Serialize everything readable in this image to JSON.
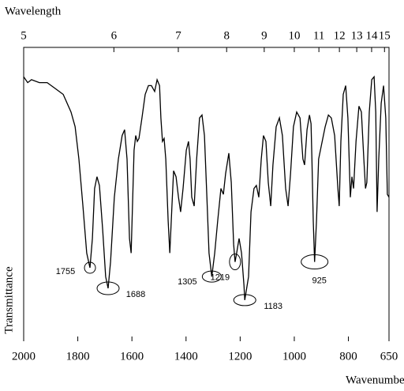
{
  "chart_data": {
    "type": "line",
    "x_label": "Wavenumber",
    "y_label": "Transmittance",
    "x2_label": "Wavelength",
    "xlim": [
      2000,
      650
    ],
    "xticks": [
      2000,
      1800,
      1600,
      1400,
      1200,
      1000,
      800,
      650
    ],
    "x2ticks": [
      5,
      6,
      7,
      8,
      9,
      10,
      11,
      12,
      13,
      14,
      15
    ],
    "ylim": [
      0,
      100
    ],
    "series": [
      {
        "color": "#000000",
        "x": [
          2000,
          1985,
          1971,
          1942,
          1913,
          1883,
          1854,
          1825,
          1810,
          1796,
          1781,
          1767,
          1755,
          1746,
          1738,
          1729,
          1720,
          1708,
          1697,
          1688,
          1679,
          1665,
          1650,
          1636,
          1627,
          1618,
          1609,
          1603,
          1598,
          1592,
          1586,
          1580,
          1574,
          1563,
          1551,
          1539,
          1528,
          1516,
          1507,
          1498,
          1493,
          1487,
          1481,
          1475,
          1466,
          1460,
          1452,
          1446,
          1437,
          1428,
          1420,
          1411,
          1399,
          1391,
          1385,
          1379,
          1370,
          1361,
          1350,
          1341,
          1332,
          1323,
          1315,
          1305,
          1294,
          1283,
          1271,
          1262,
          1254,
          1242,
          1233,
          1224,
          1219,
          1213,
          1204,
          1195,
          1186,
          1183,
          1169,
          1160,
          1149,
          1140,
          1131,
          1122,
          1114,
          1105,
          1096,
          1087,
          1079,
          1067,
          1055,
          1044,
          1032,
          1023,
          1014,
          1003,
          991,
          979,
          968,
          962,
          953,
          944,
          938,
          935,
          930,
          925,
          918,
          910,
          886,
          874,
          863,
          851,
          839,
          834,
          828,
          819,
          810,
          802,
          793,
          787,
          781,
          772,
          761,
          752,
          743,
          737,
          732,
          723,
          714,
          705,
          699,
          694,
          688,
          679,
          670,
          662,
          656,
          650
        ],
        "values": [
          90,
          88,
          89,
          88,
          88,
          86,
          84,
          78,
          73,
          62,
          46,
          30,
          25,
          35,
          52,
          56,
          53,
          38,
          22,
          18,
          27,
          49,
          62,
          70,
          72,
          62,
          35,
          30,
          46,
          65,
          70,
          68,
          69,
          76,
          84,
          87,
          87,
          85,
          89,
          87,
          76,
          68,
          69,
          62,
          41,
          30,
          46,
          58,
          56,
          49,
          44,
          52,
          65,
          68,
          62,
          49,
          46,
          62,
          76,
          77,
          70,
          49,
          30,
          22,
          30,
          41,
          52,
          50,
          57,
          64,
          54,
          33,
          27,
          30,
          35,
          30,
          19,
          14,
          22,
          44,
          52,
          53,
          49,
          62,
          70,
          68,
          54,
          46,
          60,
          73,
          76,
          70,
          52,
          46,
          57,
          73,
          78,
          76,
          62,
          60,
          72,
          77,
          74,
          62,
          41,
          27,
          41,
          62,
          73,
          77,
          76,
          70,
          52,
          46,
          68,
          84,
          87,
          76,
          49,
          56,
          52,
          68,
          80,
          78,
          62,
          52,
          54,
          78,
          89,
          90,
          78,
          44,
          62,
          81,
          87,
          76,
          50,
          49
        ]
      }
    ],
    "annotations": [
      {
        "x": 1755,
        "y": 25
      },
      {
        "x": 1688,
        "y": 18
      },
      {
        "x": 1305,
        "y": 22
      },
      {
        "x": 1219,
        "y": 27
      },
      {
        "x": 1183,
        "y": 14
      },
      {
        "x": 925,
        "y": 27
      }
    ]
  }
}
